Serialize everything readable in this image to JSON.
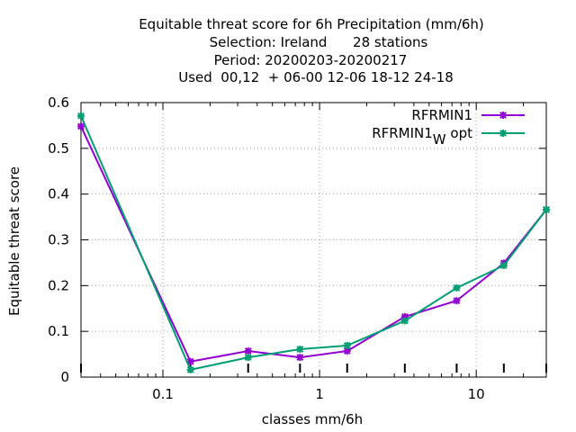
{
  "chart_data": {
    "type": "line",
    "title_lines": [
      "Equitable threat score  for 6h Precipitation (mm/6h)",
      "Selection: Ireland      28 stations",
      "Period: 20200203-20200217",
      "Used  00,12  + 06-00 12-06 18-12 24-18"
    ],
    "xlabel": "classes mm/6h",
    "ylabel": "Equitable threat score",
    "x_scale": "log",
    "xlim": [
      0.03,
      28
    ],
    "ylim": [
      0,
      0.6
    ],
    "x_ticks": [
      {
        "value": 0.1,
        "label": "0.1"
      },
      {
        "value": 1,
        "label": "1"
      },
      {
        "value": 10,
        "label": "10"
      }
    ],
    "y_ticks": [
      {
        "value": 0,
        "label": "0"
      },
      {
        "value": 0.1,
        "label": "0.1"
      },
      {
        "value": 0.2,
        "label": "0.2"
      },
      {
        "value": 0.3,
        "label": "0.3"
      },
      {
        "value": 0.4,
        "label": "0.4"
      },
      {
        "value": 0.5,
        "label": "0.5"
      },
      {
        "value": 0.6,
        "label": "0.6"
      }
    ],
    "grid": true,
    "legend_position": "top-right",
    "x": [
      0.03,
      0.15,
      0.35,
      0.75,
      1.5,
      3.5,
      7.5,
      15,
      28
    ],
    "series": [
      {
        "name": "RFRMIN1",
        "name_sub": "",
        "name_suffix": "",
        "color": "#9400d3",
        "values": [
          0.548,
          0.034,
          0.057,
          0.043,
          0.057,
          0.132,
          0.167,
          0.249,
          0.366
        ]
      },
      {
        "name": "RFRMIN1",
        "name_sub": "W",
        "name_suffix": " opt",
        "color": "#009e73",
        "values": [
          0.571,
          0.016,
          0.043,
          0.061,
          0.069,
          0.123,
          0.195,
          0.244,
          0.366
        ]
      }
    ]
  }
}
